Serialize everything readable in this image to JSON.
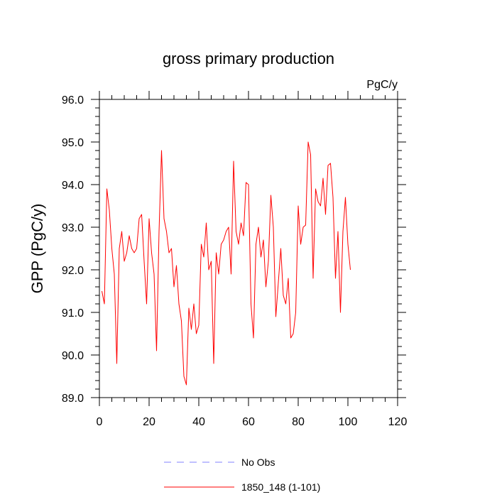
{
  "chart_data": {
    "type": "line",
    "title": "gross primary production",
    "units_label": "PgC/y",
    "ylabel": "GPP  (PgC/y)",
    "xlabel": "",
    "xlim": [
      0,
      120
    ],
    "ylim": [
      89.0,
      96.0
    ],
    "x_ticks": [
      0,
      20,
      40,
      60,
      80,
      100,
      120
    ],
    "x_tick_labels": [
      "0",
      "20",
      "40",
      "60",
      "80",
      "100",
      "120"
    ],
    "y_ticks": [
      89.0,
      90.0,
      91.0,
      92.0,
      93.0,
      94.0,
      95.0,
      96.0
    ],
    "y_tick_labels": [
      "89.0",
      "90.0",
      "91.0",
      "92.0",
      "93.0",
      "94.0",
      "95.0",
      "96.0"
    ],
    "grid": false,
    "legend_position": "bottom",
    "series": [
      {
        "name": "No Obs",
        "style": "dashed",
        "color": "#8080ff",
        "x": [],
        "values": []
      },
      {
        "name": "1850_148 (1-101)",
        "style": "solid",
        "color": "#ff0000",
        "x": [
          1,
          2,
          3,
          4,
          5,
          6,
          7,
          8,
          9,
          10,
          11,
          12,
          13,
          14,
          15,
          16,
          17,
          18,
          19,
          20,
          21,
          22,
          23,
          24,
          25,
          26,
          27,
          28,
          29,
          30,
          31,
          32,
          33,
          34,
          35,
          36,
          37,
          38,
          39,
          40,
          41,
          42,
          43,
          44,
          45,
          46,
          47,
          48,
          49,
          50,
          51,
          52,
          53,
          54,
          55,
          56,
          57,
          58,
          59,
          60,
          61,
          62,
          63,
          64,
          65,
          66,
          67,
          68,
          69,
          70,
          71,
          72,
          73,
          74,
          75,
          76,
          77,
          78,
          79,
          80,
          81,
          82,
          83,
          84,
          85,
          86,
          87,
          88,
          89,
          90,
          91,
          92,
          93,
          94,
          95,
          96,
          97,
          98,
          99,
          100,
          101
        ],
        "values": [
          91.5,
          91.2,
          93.9,
          93.4,
          92.5,
          91.9,
          89.8,
          92.5,
          92.9,
          92.2,
          92.4,
          92.8,
          92.5,
          92.4,
          92.5,
          93.2,
          93.3,
          92.2,
          91.2,
          93.2,
          92.4,
          91.9,
          90.1,
          92.9,
          94.8,
          93.2,
          92.9,
          92.4,
          92.5,
          91.6,
          92.1,
          91.2,
          90.8,
          89.5,
          89.3,
          91.1,
          90.6,
          91.2,
          90.5,
          90.7,
          92.6,
          92.3,
          93.1,
          92.0,
          92.2,
          89.8,
          92.4,
          91.9,
          92.6,
          92.7,
          92.9,
          93.0,
          91.9,
          94.55,
          92.9,
          92.6,
          93.1,
          92.8,
          94.05,
          94.0,
          91.2,
          90.4,
          92.6,
          93.0,
          92.3,
          92.7,
          91.6,
          92.2,
          93.75,
          93.0,
          90.9,
          91.7,
          92.5,
          91.4,
          91.2,
          91.8,
          90.4,
          90.5,
          91.0,
          93.5,
          92.6,
          93.0,
          93.05,
          95.0,
          94.7,
          91.8,
          93.9,
          93.6,
          93.5,
          94.15,
          93.3,
          94.45,
          94.5,
          93.7,
          91.8,
          92.9,
          91.0,
          92.9,
          93.7,
          92.6,
          92.0
        ]
      }
    ]
  }
}
